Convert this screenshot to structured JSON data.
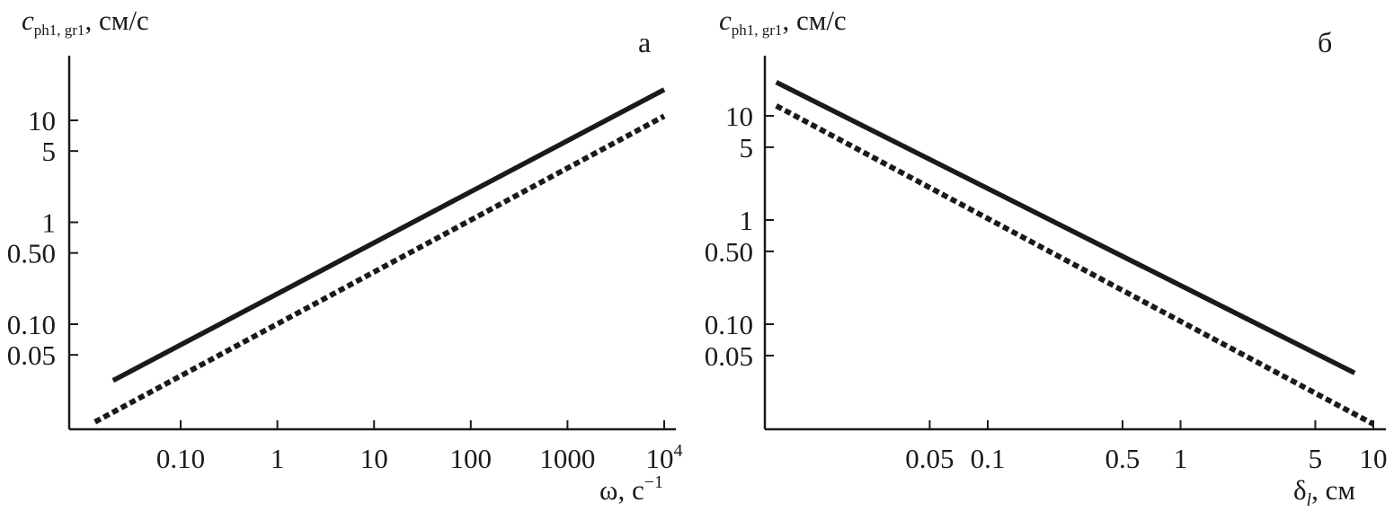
{
  "chart_data": [
    {
      "type": "line",
      "panel_label": "а",
      "ylabel": {
        "base": "c",
        "sub": "ph1, gr1",
        "rest": ", см/с"
      },
      "xlabel": {
        "text": "ω, с",
        "sup": "−1"
      },
      "x_scale": "log",
      "y_scale": "log",
      "xlim": [
        0.011,
        12000
      ],
      "ylim": [
        0.008,
        90
      ],
      "x_ticks": [
        {
          "value": 0.1,
          "label": "0.10"
        },
        {
          "value": 1,
          "label": "1"
        },
        {
          "value": 10,
          "label": "10"
        },
        {
          "value": 100,
          "label": "100"
        },
        {
          "value": 1000,
          "label": "1000"
        },
        {
          "value": 10000,
          "label": "10",
          "sup": "4"
        }
      ],
      "y_ticks": [
        {
          "value": 0.05,
          "label": "0.05"
        },
        {
          "value": 0.1,
          "label": "0.10"
        },
        {
          "value": 0.5,
          "label": "0.50"
        },
        {
          "value": 1,
          "label": "1"
        },
        {
          "value": 5,
          "label": "5"
        },
        {
          "value": 10,
          "label": "10"
        }
      ],
      "series": [
        {
          "style": "solid",
          "x": [
            0.02,
            10000
          ],
          "y": [
            0.028,
            20
          ]
        },
        {
          "style": "dashed",
          "x": [
            0.013,
            10000
          ],
          "y": [
            0.011,
            11
          ]
        }
      ],
      "grid": false
    },
    {
      "type": "line",
      "panel_label": "б",
      "ylabel": {
        "base": "c",
        "sub": "ph1, gr1",
        "rest": ", см/с"
      },
      "xlabel": {
        "text": "δ",
        "sub": "l",
        "rest": ", см"
      },
      "x_scale": "log",
      "y_scale": "log",
      "xlim": [
        0.007,
        12
      ],
      "ylim": [
        0.008,
        90
      ],
      "x_ticks": [
        {
          "value": 0.05,
          "label": "0.05"
        },
        {
          "value": 0.1,
          "label": "0.1"
        },
        {
          "value": 0.5,
          "label": "0.5"
        },
        {
          "value": 1,
          "label": "1"
        },
        {
          "value": 5,
          "label": "5"
        },
        {
          "value": 10,
          "label": "10"
        }
      ],
      "y_ticks": [
        {
          "value": 0.05,
          "label": "0.05"
        },
        {
          "value": 0.1,
          "label": "0.10"
        },
        {
          "value": 0.5,
          "label": "0.50"
        },
        {
          "value": 1,
          "label": "1"
        },
        {
          "value": 5,
          "label": "5"
        },
        {
          "value": 10,
          "label": "10"
        }
      ],
      "series": [
        {
          "style": "solid",
          "x": [
            0.008,
            8
          ],
          "y": [
            21,
            0.034
          ]
        },
        {
          "style": "dashed",
          "x": [
            0.008,
            10
          ],
          "y": [
            12.5,
            0.011
          ]
        }
      ],
      "grid": false
    }
  ]
}
